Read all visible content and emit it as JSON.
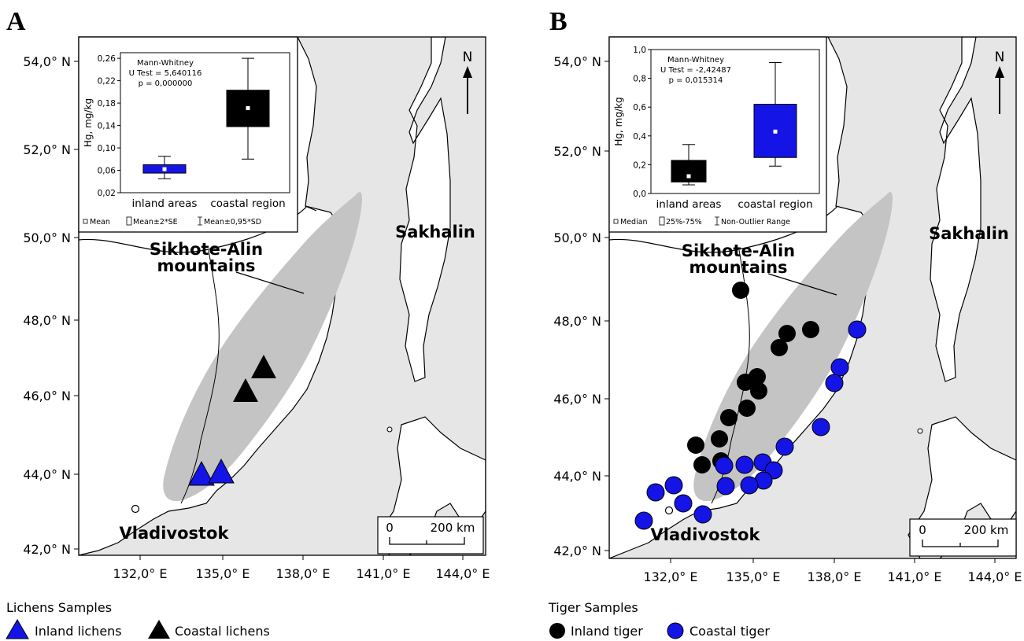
{
  "panels": [
    {
      "letter": "A",
      "y_axis": [
        "54,0° N",
        "52,0° N",
        "50,0° N",
        "48,0° N",
        "46,0° N",
        "44,0° N",
        "42,0° N"
      ],
      "x_axis": [
        "132,0° E",
        "135,0° E",
        "138,0° E",
        "141,0° E",
        "144,0° E"
      ],
      "places": {
        "mountains_line1": "Sikhote-Alin",
        "mountains_line2": "mountains",
        "island": "Sakhalin",
        "city": "Vladivostok"
      },
      "north": "N",
      "scale": {
        "zero": "0",
        "distance": "200 km"
      },
      "inset": {
        "test_line1": "Mann-Whitney",
        "test_line2": "U Test = 5,640116",
        "test_line3": "p = 0,000000",
        "ylabel": "Hg, mg/kg",
        "yticks": [
          "0,26",
          "0,22",
          "0,18",
          "0,14",
          "0,10",
          "0,06",
          "0,02"
        ],
        "categories": [
          "inland areas",
          "coastal region"
        ],
        "legend": [
          "Mean",
          "Mean±2*SE",
          "Mean±0,95*SD"
        ],
        "boxes": [
          {
            "center": 0.062,
            "box": [
              0.055,
              0.07
            ],
            "whisker": [
              0.045,
              0.085
            ],
            "color": "#1414e6"
          },
          {
            "center": 0.171,
            "box": [
              0.138,
              0.203
            ],
            "whisker": [
              0.08,
              0.26
            ],
            "color": "#000000"
          }
        ]
      },
      "legend": {
        "title": "Lichens Samples",
        "items": [
          "Inland lichens",
          "Coastal lichens"
        ]
      }
    },
    {
      "letter": "B",
      "y_axis": [
        "54,0° N",
        "52,0° N",
        "50,0° N",
        "48,0° N",
        "46,0° N",
        "44,0° N",
        "42,0° N"
      ],
      "x_axis": [
        "132,0° E",
        "135,0° E",
        "138,0° E",
        "141,0° E",
        "144,0° E"
      ],
      "places": {
        "mountains_line1": "Sikhote-Alin",
        "mountains_line2": "mountains",
        "island": "Sakhalin",
        "city": "Vladivostok"
      },
      "north": "N",
      "scale": {
        "zero": "0",
        "distance": "200 km"
      },
      "inset": {
        "test_line1": "Mann-Whitney",
        "test_line2": "U Test = -2,42487",
        "test_line3": "p = 0,015314",
        "ylabel": "Hg, mg/kg",
        "yticks": [
          "1,0",
          "0,8",
          "0,6",
          "0,4",
          "0,2",
          "0,0"
        ],
        "categories": [
          "inland areas",
          "coastal region"
        ],
        "legend": [
          "Median",
          "25%-75%",
          "Non-Outlier Range"
        ],
        "boxes": [
          {
            "center": 0.12,
            "box": [
              0.08,
              0.23
            ],
            "whisker": [
              0.06,
              0.34
            ],
            "color": "#000000"
          },
          {
            "center": 0.43,
            "box": [
              0.25,
              0.62
            ],
            "whisker": [
              0.19,
              0.91
            ],
            "color": "#1414e6"
          }
        ]
      },
      "legend": {
        "title": "Tiger Samples",
        "items": [
          "Inland tiger",
          "Coastal tiger"
        ]
      }
    }
  ],
  "colors": {
    "blue": "#1414e6",
    "black": "#000000",
    "sea": "#e6e6e6",
    "mountains": "#c4c4c4"
  }
}
